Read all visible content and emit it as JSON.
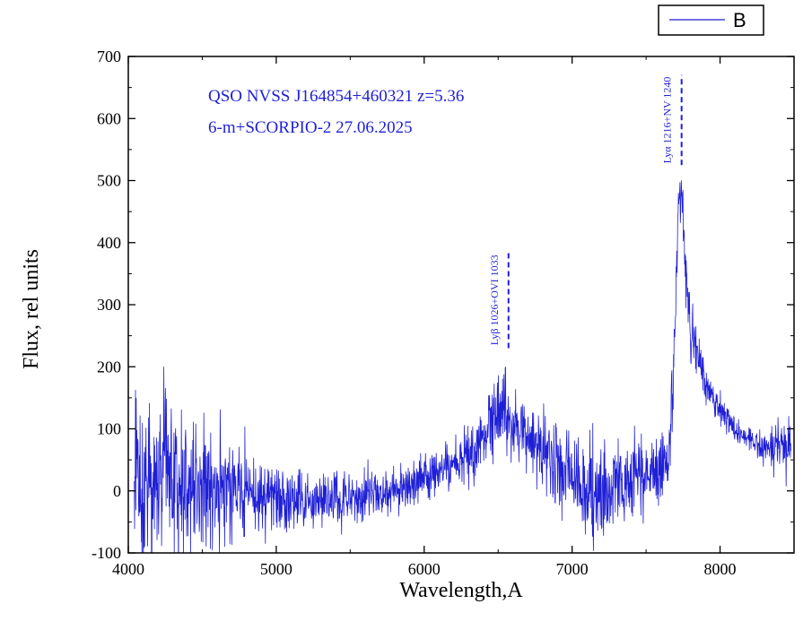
{
  "chart_data": {
    "type": "line",
    "xlabel": "Wavelength,A",
    "ylabel": "Flux, rel units",
    "xlim": [
      4000,
      8500
    ],
    "ylim": [
      -100,
      700
    ],
    "xticks": [
      4000,
      5000,
      6000,
      7000,
      8000
    ],
    "yticks": [
      -100,
      0,
      100,
      200,
      300,
      400,
      500,
      600,
      700
    ],
    "grid": false,
    "legend": {
      "position": "top-right",
      "entries": [
        "B"
      ]
    },
    "annotations": [
      "QSO  NVSS J164854+460321 z=5.36",
      "6-m+SCORPIO-2 27.06.2025"
    ],
    "line_labels": [
      {
        "text": "Lyβ 1026+OVI 1033",
        "x": 6570,
        "y_from": 230,
        "y_to": 385
      },
      {
        "text": "Lyα 1216+NV 1240",
        "x": 7740,
        "y_from": 525,
        "y_to": 670
      }
    ],
    "series": [
      {
        "name": "B",
        "color": "#1f1fd6",
        "x": [
          4040,
          4200,
          4400,
          4600,
          4800,
          5000,
          5200,
          5400,
          5600,
          5800,
          6000,
          6200,
          6300,
          6400,
          6450,
          6500,
          6550,
          6600,
          6700,
          6800,
          6900,
          7000,
          7100,
          7200,
          7300,
          7400,
          7500,
          7600,
          7650,
          7680,
          7700,
          7720,
          7740,
          7760,
          7800,
          7850,
          7900,
          8000,
          8100,
          8200,
          8300,
          8400,
          8480
        ],
        "y": [
          20,
          15,
          10,
          5,
          0,
          -15,
          -20,
          -15,
          -5,
          5,
          20,
          40,
          60,
          80,
          100,
          140,
          120,
          90,
          80,
          60,
          40,
          20,
          0,
          -10,
          10,
          20,
          30,
          40,
          50,
          150,
          300,
          460,
          490,
          380,
          260,
          220,
          180,
          130,
          100,
          80,
          70,
          70,
          75
        ],
        "noise": [
          120,
          100,
          90,
          70,
          55,
          45,
          40,
          35,
          30,
          30,
          30,
          30,
          35,
          35,
          45,
          55,
          55,
          50,
          45,
          45,
          50,
          55,
          60,
          65,
          60,
          50,
          45,
          40,
          35,
          45,
          55,
          40,
          35,
          35,
          35,
          30,
          25,
          18,
          15,
          15,
          20,
          35,
          50
        ]
      }
    ]
  }
}
